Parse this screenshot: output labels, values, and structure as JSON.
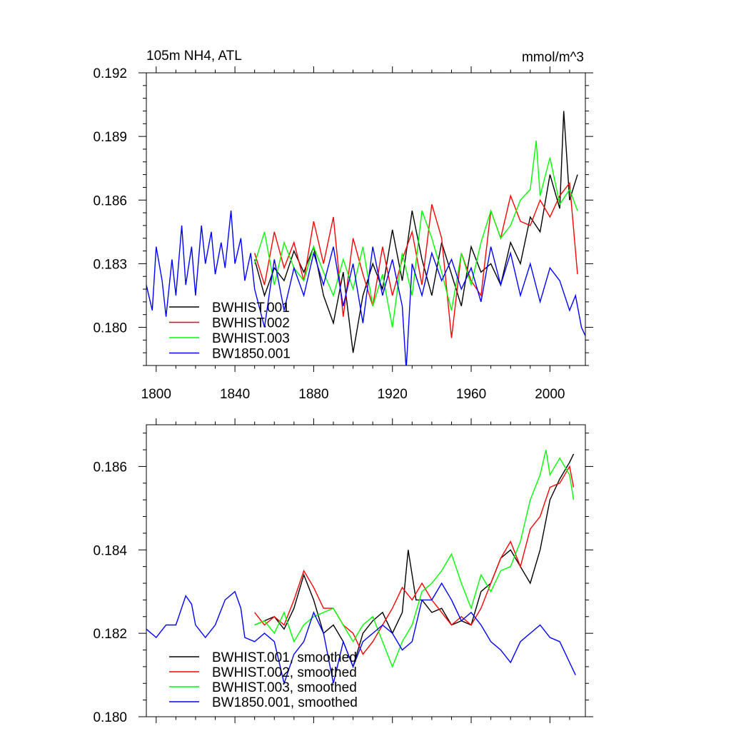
{
  "chart_data": [
    {
      "type": "line",
      "title_left": "105m NH4, ATL",
      "title_right": "mmol/m^3",
      "xlabel": "",
      "ylabel": "",
      "xlim": [
        1795,
        2018
      ],
      "ylim": [
        0.1782,
        0.192
      ],
      "x_ticks": [
        "1800",
        "1840",
        "1880",
        "1920",
        "1960",
        "2000"
      ],
      "y_ticks": [
        "0.180",
        "0.183",
        "0.186",
        "0.189",
        "0.192"
      ],
      "legend_position": "bottom-left",
      "series": [
        {
          "name": "BWHIST.001",
          "color": "#000000",
          "x": [
            1850,
            1855,
            1860,
            1865,
            1870,
            1875,
            1880,
            1885,
            1890,
            1895,
            1900,
            1905,
            1910,
            1915,
            1920,
            1925,
            1930,
            1935,
            1940,
            1945,
            1950,
            1955,
            1960,
            1965,
            1970,
            1975,
            1980,
            1985,
            1990,
            1995,
            2000,
            2005,
            2007,
            2010,
            2014
          ],
          "values": [
            0.1832,
            0.1815,
            0.1828,
            0.1822,
            0.1836,
            0.1826,
            0.1838,
            0.1815,
            0.1802,
            0.1826,
            0.1788,
            0.1815,
            0.183,
            0.1818,
            0.1846,
            0.1822,
            0.1855,
            0.1832,
            0.1815,
            0.184,
            0.1825,
            0.181,
            0.1838,
            0.1826,
            0.183,
            0.182,
            0.184,
            0.183,
            0.1852,
            0.1845,
            0.1872,
            0.1856,
            0.1902,
            0.186,
            0.1872
          ]
        },
        {
          "name": "BWHIST.002",
          "color": "#ff0000",
          "x": [
            1850,
            1855,
            1860,
            1865,
            1870,
            1875,
            1880,
            1885,
            1890,
            1895,
            1900,
            1905,
            1910,
            1915,
            1920,
            1925,
            1930,
            1935,
            1940,
            1945,
            1950,
            1955,
            1960,
            1965,
            1970,
            1975,
            1980,
            1985,
            1990,
            1995,
            2000,
            2005,
            2010,
            2014
          ],
          "values": [
            0.1835,
            0.182,
            0.1845,
            0.1828,
            0.184,
            0.1822,
            0.185,
            0.183,
            0.1852,
            0.1805,
            0.1842,
            0.1825,
            0.181,
            0.1838,
            0.1815,
            0.1832,
            0.1845,
            0.182,
            0.1858,
            0.1842,
            0.1795,
            0.1835,
            0.1822,
            0.1815,
            0.1855,
            0.1842,
            0.1862,
            0.185,
            0.1848,
            0.186,
            0.1852,
            0.1862,
            0.1868,
            0.1825
          ]
        },
        {
          "name": "BWHIST.003",
          "color": "#00ff00",
          "x": [
            1850,
            1855,
            1860,
            1865,
            1870,
            1875,
            1880,
            1885,
            1890,
            1895,
            1900,
            1905,
            1910,
            1915,
            1920,
            1925,
            1930,
            1935,
            1940,
            1945,
            1950,
            1955,
            1960,
            1965,
            1970,
            1975,
            1980,
            1985,
            1990,
            1993,
            1995,
            2000,
            2005,
            2010,
            2014
          ],
          "values": [
            0.183,
            0.1845,
            0.182,
            0.184,
            0.1828,
            0.1822,
            0.1838,
            0.1826,
            0.1815,
            0.1832,
            0.1818,
            0.1838,
            0.181,
            0.1825,
            0.18,
            0.1835,
            0.1815,
            0.1855,
            0.1842,
            0.1826,
            0.1808,
            0.1835,
            0.182,
            0.184,
            0.1855,
            0.1842,
            0.1848,
            0.186,
            0.1865,
            0.1888,
            0.1862,
            0.188,
            0.1858,
            0.1865,
            0.1855
          ]
        },
        {
          "name": "BW1850.001",
          "color": "#0000ff",
          "x": [
            1795,
            1798,
            1800,
            1803,
            1805,
            1808,
            1810,
            1813,
            1815,
            1818,
            1820,
            1823,
            1825,
            1828,
            1830,
            1833,
            1835,
            1838,
            1840,
            1843,
            1845,
            1848,
            1850,
            1855,
            1860,
            1865,
            1870,
            1875,
            1880,
            1885,
            1890,
            1895,
            1900,
            1905,
            1910,
            1915,
            1920,
            1925,
            1927,
            1930,
            1935,
            1940,
            1945,
            1950,
            1955,
            1960,
            1965,
            1970,
            1975,
            1980,
            1985,
            1990,
            1995,
            2000,
            2005,
            2010,
            2013,
            2016,
            2018
          ],
          "values": [
            0.182,
            0.1808,
            0.1838,
            0.1822,
            0.1805,
            0.1832,
            0.1815,
            0.1848,
            0.182,
            0.1838,
            0.1815,
            0.1848,
            0.183,
            0.1845,
            0.1825,
            0.184,
            0.1828,
            0.1855,
            0.183,
            0.1842,
            0.1822,
            0.1835,
            0.1818,
            0.18,
            0.1832,
            0.1808,
            0.1828,
            0.1815,
            0.1835,
            0.182,
            0.1838,
            0.181,
            0.183,
            0.1802,
            0.1838,
            0.1815,
            0.1832,
            0.181,
            0.178,
            0.183,
            0.1815,
            0.1835,
            0.1822,
            0.1832,
            0.1818,
            0.1828,
            0.1812,
            0.1838,
            0.182,
            0.1835,
            0.1815,
            0.183,
            0.1812,
            0.1828,
            0.1822,
            0.1808,
            0.1815,
            0.18,
            0.1796
          ]
        }
      ]
    },
    {
      "type": "line",
      "xlabel": "",
      "ylabel": "",
      "xlim": [
        1795,
        2018
      ],
      "ylim": [
        0.18,
        0.187
      ],
      "x_ticks": [],
      "y_ticks": [
        "0.180",
        "0.182",
        "0.184",
        "0.186"
      ],
      "legend_position": "bottom-left",
      "series": [
        {
          "name": "BWHIST.001, smoothed",
          "color": "#000000",
          "x": [
            1850,
            1855,
            1860,
            1865,
            1870,
            1875,
            1880,
            1885,
            1890,
            1895,
            1900,
            1905,
            1910,
            1915,
            1920,
            1925,
            1928,
            1932,
            1935,
            1940,
            1945,
            1950,
            1955,
            1960,
            1965,
            1970,
            1975,
            1980,
            1985,
            1990,
            1995,
            2000,
            2005,
            2010,
            2012
          ],
          "values": [
            0.1822,
            0.1823,
            0.1824,
            0.1821,
            0.1826,
            0.1834,
            0.1828,
            0.182,
            0.1822,
            0.1818,
            0.1812,
            0.182,
            0.1823,
            0.1825,
            0.182,
            0.1825,
            0.184,
            0.1828,
            0.1828,
            0.1825,
            0.1826,
            0.1822,
            0.1823,
            0.1822,
            0.183,
            0.1832,
            0.1838,
            0.184,
            0.1836,
            0.1832,
            0.184,
            0.1852,
            0.1857,
            0.1861,
            0.1863
          ]
        },
        {
          "name": "BWHIST.002, smoothed",
          "color": "#ff0000",
          "x": [
            1850,
            1855,
            1860,
            1865,
            1870,
            1875,
            1880,
            1885,
            1890,
            1895,
            1900,
            1905,
            1910,
            1915,
            1920,
            1925,
            1930,
            1935,
            1940,
            1945,
            1950,
            1955,
            1960,
            1965,
            1970,
            1975,
            1980,
            1985,
            1990,
            1995,
            2000,
            2005,
            2010,
            2012
          ],
          "values": [
            0.1825,
            0.1822,
            0.1824,
            0.1822,
            0.1828,
            0.1835,
            0.1831,
            0.1826,
            0.1826,
            0.1822,
            0.182,
            0.1815,
            0.1818,
            0.1822,
            0.1826,
            0.1831,
            0.1828,
            0.1832,
            0.1828,
            0.1825,
            0.1822,
            0.1824,
            0.1822,
            0.1826,
            0.1832,
            0.1838,
            0.1842,
            0.1836,
            0.1845,
            0.1848,
            0.1855,
            0.1856,
            0.186,
            0.1855
          ]
        },
        {
          "name": "BWHIST.003, smoothed",
          "color": "#00ff00",
          "x": [
            1850,
            1855,
            1860,
            1865,
            1870,
            1875,
            1880,
            1885,
            1890,
            1895,
            1900,
            1905,
            1910,
            1915,
            1920,
            1925,
            1930,
            1935,
            1940,
            1945,
            1950,
            1955,
            1960,
            1965,
            1970,
            1975,
            1980,
            1985,
            1990,
            1995,
            1998,
            2000,
            2005,
            2010,
            2012
          ],
          "values": [
            0.1822,
            0.1823,
            0.182,
            0.1825,
            0.1818,
            0.1822,
            0.1824,
            0.1825,
            0.1826,
            0.1822,
            0.1818,
            0.1822,
            0.1824,
            0.1818,
            0.1812,
            0.1818,
            0.1822,
            0.183,
            0.1832,
            0.1835,
            0.1839,
            0.1832,
            0.1826,
            0.1834,
            0.183,
            0.1835,
            0.1836,
            0.1842,
            0.1852,
            0.1858,
            0.1864,
            0.1858,
            0.1862,
            0.1858,
            0.1852
          ]
        },
        {
          "name": "BW1850.001, smoothed",
          "color": "#0000ff",
          "x": [
            1795,
            1800,
            1805,
            1810,
            1815,
            1818,
            1820,
            1825,
            1830,
            1835,
            1840,
            1843,
            1845,
            1850,
            1855,
            1860,
            1865,
            1870,
            1875,
            1880,
            1885,
            1890,
            1895,
            1900,
            1905,
            1910,
            1915,
            1920,
            1925,
            1930,
            1935,
            1940,
            1945,
            1950,
            1955,
            1960,
            1965,
            1970,
            1975,
            1980,
            1985,
            1990,
            1995,
            2000,
            2005,
            2010,
            2013
          ],
          "values": [
            0.1821,
            0.1819,
            0.1822,
            0.1822,
            0.1829,
            0.1827,
            0.1822,
            0.1819,
            0.1822,
            0.1828,
            0.183,
            0.1826,
            0.1819,
            0.1818,
            0.182,
            0.1818,
            0.1808,
            0.1815,
            0.1818,
            0.1825,
            0.182,
            0.1808,
            0.1818,
            0.1812,
            0.1818,
            0.182,
            0.1822,
            0.182,
            0.1816,
            0.1818,
            0.1828,
            0.1828,
            0.1832,
            0.1828,
            0.1823,
            0.1825,
            0.1822,
            0.1818,
            0.1816,
            0.1813,
            0.1818,
            0.182,
            0.1822,
            0.1819,
            0.1818,
            0.1813,
            0.181
          ]
        }
      ]
    }
  ]
}
